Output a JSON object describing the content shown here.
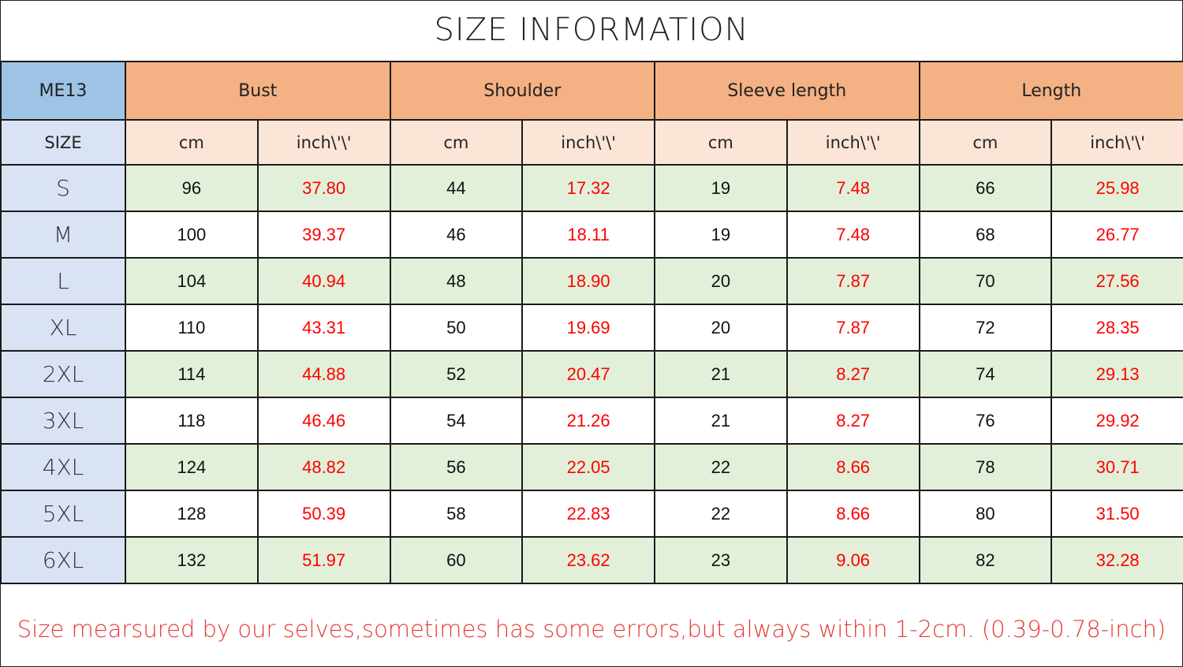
{
  "title": "SIZE INFORMATION",
  "model": "ME13",
  "size_label": "SIZE",
  "measurements": [
    "Bust",
    "Shoulder",
    "Sleeve length",
    "Length"
  ],
  "unit_cm": "cm",
  "unit_inch": "inch\\'\\'",
  "colors": {
    "model": "#9dc3e6",
    "header": "#f4b183",
    "subheader": "#fbe5d6",
    "size_col": "#dae3f3",
    "alt_row": "#e2f0d9",
    "inch_text": "#ff0000"
  },
  "rows": [
    {
      "size": "S",
      "values": [
        "96",
        "37.80",
        "44",
        "17.32",
        "19",
        "7.48",
        "66",
        "25.98"
      ]
    },
    {
      "size": "M",
      "values": [
        "100",
        "39.37",
        "46",
        "18.11",
        "19",
        "7.48",
        "68",
        "26.77"
      ]
    },
    {
      "size": "L",
      "values": [
        "104",
        "40.94",
        "48",
        "18.90",
        "20",
        "7.87",
        "70",
        "27.56"
      ]
    },
    {
      "size": "XL",
      "values": [
        "110",
        "43.31",
        "50",
        "19.69",
        "20",
        "7.87",
        "72",
        "28.35"
      ]
    },
    {
      "size": "2XL",
      "values": [
        "114",
        "44.88",
        "52",
        "20.47",
        "21",
        "8.27",
        "74",
        "29.13"
      ]
    },
    {
      "size": "3XL",
      "values": [
        "118",
        "46.46",
        "54",
        "21.26",
        "21",
        "8.27",
        "76",
        "29.92"
      ]
    },
    {
      "size": "4XL",
      "values": [
        "124",
        "48.82",
        "56",
        "22.05",
        "22",
        "8.66",
        "78",
        "30.71"
      ]
    },
    {
      "size": "5XL",
      "values": [
        "128",
        "50.39",
        "58",
        "22.83",
        "22",
        "8.66",
        "80",
        "31.50"
      ]
    },
    {
      "size": "6XL",
      "values": [
        "132",
        "51.97",
        "60",
        "23.62",
        "23",
        "9.06",
        "82",
        "32.28"
      ]
    }
  ],
  "note": "Size mearsured by our selves,sometimes has some errors,but always within 1-2cm. (0.39-0.78-inch)"
}
